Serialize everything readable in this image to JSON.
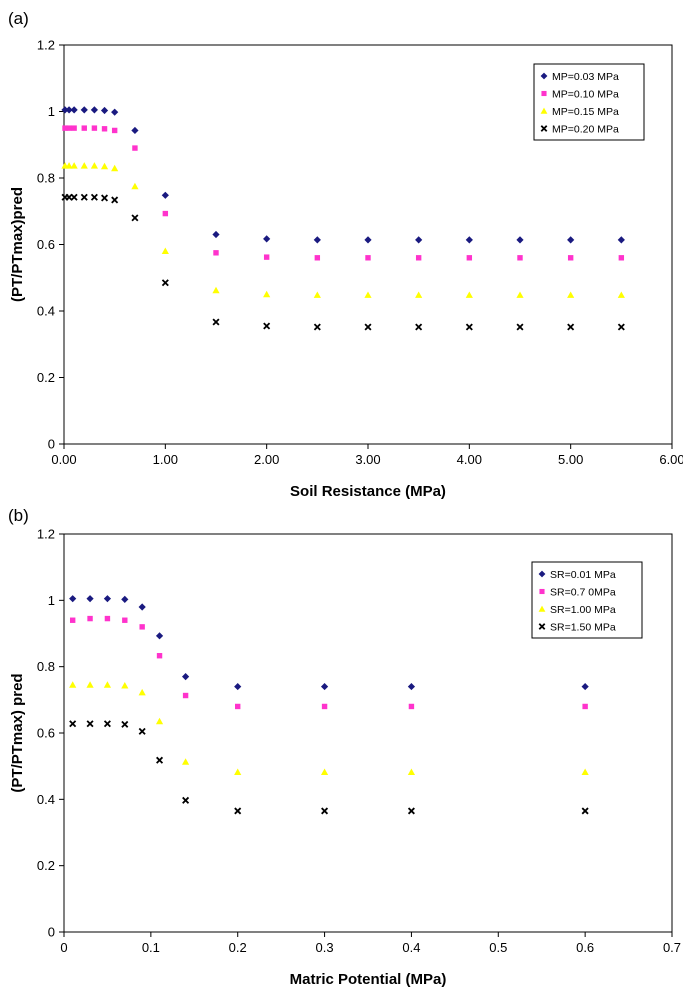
{
  "chart_data": [
    {
      "type": "scatter",
      "panel_label": "(a)",
      "xlabel": "Soil Resistance (MPa)",
      "ylabel": "(PT/PTmax)pred",
      "xlim": [
        0,
        6
      ],
      "ylim": [
        0,
        1.2
      ],
      "x_ticks": [
        "0.00",
        "1.00",
        "2.00",
        "3.00",
        "4.00",
        "5.00",
        "6.00"
      ],
      "y_ticks": [
        "0",
        "0.2",
        "0.4",
        "0.6",
        "0.8",
        "1",
        "1.2"
      ],
      "legend_position": "top-right",
      "grid": false,
      "x": [
        0.01,
        0.05,
        0.1,
        0.2,
        0.3,
        0.4,
        0.5,
        0.7,
        1.0,
        1.5,
        2.0,
        2.5,
        3.0,
        3.5,
        4.0,
        4.5,
        5.0,
        5.5
      ],
      "series": [
        {
          "name": "MP=0.03 MPa",
          "marker": "diamond",
          "color": "#1a1a80",
          "values": [
            1.005,
            1.005,
            1.005,
            1.005,
            1.005,
            1.003,
            0.998,
            0.943,
            0.748,
            0.63,
            0.617,
            0.614,
            0.614,
            0.614,
            0.614,
            0.614,
            0.614,
            0.614
          ]
        },
        {
          "name": "MP=0.10 MPa",
          "marker": "square",
          "color": "#ff33cc",
          "values": [
            0.95,
            0.95,
            0.95,
            0.95,
            0.95,
            0.948,
            0.943,
            0.89,
            0.693,
            0.575,
            0.562,
            0.56,
            0.56,
            0.56,
            0.56,
            0.56,
            0.56,
            0.56
          ]
        },
        {
          "name": "MP=0.15 MPa",
          "marker": "triangle",
          "color": "#ffff00",
          "values": [
            0.837,
            0.837,
            0.837,
            0.837,
            0.837,
            0.835,
            0.829,
            0.775,
            0.58,
            0.462,
            0.45,
            0.448,
            0.448,
            0.448,
            0.448,
            0.448,
            0.448,
            0.448
          ]
        },
        {
          "name": "MP=0.20 MPa",
          "marker": "x",
          "color": "#000000",
          "values": [
            0.742,
            0.742,
            0.742,
            0.742,
            0.742,
            0.74,
            0.734,
            0.68,
            0.485,
            0.367,
            0.355,
            0.352,
            0.352,
            0.352,
            0.352,
            0.352,
            0.352,
            0.352
          ]
        }
      ]
    },
    {
      "type": "scatter",
      "panel_label": "(b)",
      "xlabel": "Matric Potential (MPa)",
      "ylabel": "(PT/PTmax) pred",
      "xlim": [
        0,
        0.7
      ],
      "ylim": [
        0,
        1.2
      ],
      "x_ticks": [
        "0",
        "0.1",
        "0.2",
        "0.3",
        "0.4",
        "0.5",
        "0.6",
        "0.7"
      ],
      "y_ticks": [
        "0",
        "0.2",
        "0.4",
        "0.6",
        "0.8",
        "1",
        "1.2"
      ],
      "legend_position": "top-right",
      "grid": false,
      "x": [
        0.01,
        0.03,
        0.05,
        0.07,
        0.09,
        0.11,
        0.14,
        0.2,
        0.3,
        0.4,
        0.6
      ],
      "series": [
        {
          "name": "SR=0.01 MPa",
          "marker": "diamond",
          "color": "#1a1a80",
          "values": [
            1.005,
            1.005,
            1.005,
            1.003,
            0.98,
            0.893,
            0.77,
            0.74,
            0.74,
            0.74,
            0.74
          ]
        },
        {
          "name": "SR=0.7 0MPa",
          "marker": "square",
          "color": "#ff33cc",
          "values": [
            0.94,
            0.945,
            0.945,
            0.94,
            0.92,
            0.833,
            0.713,
            0.68,
            0.68,
            0.68,
            0.68
          ]
        },
        {
          "name": "SR=1.00 MPa",
          "marker": "triangle",
          "color": "#ffff00",
          "values": [
            0.745,
            0.745,
            0.745,
            0.743,
            0.722,
            0.635,
            0.513,
            0.482,
            0.482,
            0.482,
            0.482
          ]
        },
        {
          "name": "SR=1.50 MPa",
          "marker": "x",
          "color": "#000000",
          "values": [
            0.628,
            0.628,
            0.628,
            0.626,
            0.605,
            0.518,
            0.397,
            0.365,
            0.365,
            0.365,
            0.365
          ]
        }
      ]
    }
  ]
}
